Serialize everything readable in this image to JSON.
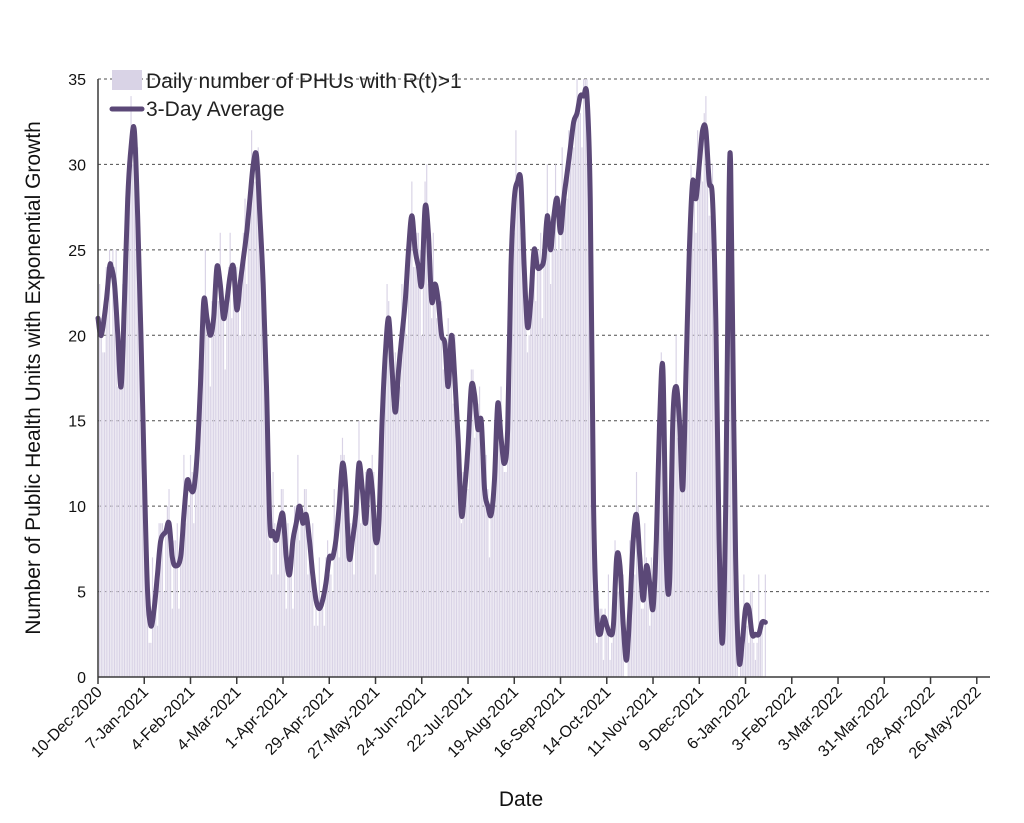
{
  "chart_data": {
    "type": "bar",
    "xlabel": "Date",
    "ylabel": "Number of Public Health Units with Exponential Growth",
    "ylim": [
      0,
      35
    ],
    "yticks": [
      0,
      5,
      10,
      15,
      20,
      25,
      30,
      35
    ],
    "xlim_days": [
      0,
      540
    ],
    "x_start": "10-Dec-2020",
    "x_tick_labels": [
      "10-Dec-2020",
      "7-Jan-2021",
      "4-Feb-2021",
      "4-Mar-2021",
      "1-Apr-2021",
      "29-Apr-2021",
      "27-May-2021",
      "24-Jun-2021",
      "22-Jul-2021",
      "19-Aug-2021",
      "16-Sep-2021",
      "14-Oct-2021",
      "11-Nov-2021",
      "9-Dec-2021",
      "6-Jan-2022",
      "3-Feb-2022",
      "3-Mar-2022",
      "31-Mar-2022",
      "28-Apr-2022",
      "26-May-2022"
    ],
    "grid": true,
    "legend": {
      "placement": "top-left"
    },
    "colors": {
      "bars": "#d9d3e6",
      "line": "#5b4877"
    },
    "series": [
      {
        "name": "Daily number of PHUs with R(t)>1",
        "type": "bar"
      },
      {
        "name": "3-Day Average",
        "type": "line"
      }
    ],
    "average_keypoints": [
      [
        0,
        21
      ],
      [
        2,
        20
      ],
      [
        5,
        22
      ],
      [
        7,
        24
      ],
      [
        8,
        24
      ],
      [
        10,
        23
      ],
      [
        12,
        20
      ],
      [
        14,
        17
      ],
      [
        16,
        22
      ],
      [
        18,
        28
      ],
      [
        20,
        31
      ],
      [
        22,
        32
      ],
      [
        24,
        27
      ],
      [
        26,
        20
      ],
      [
        28,
        12
      ],
      [
        30,
        5
      ],
      [
        32,
        3
      ],
      [
        34,
        4
      ],
      [
        36,
        6
      ],
      [
        38,
        8
      ],
      [
        41,
        8.5
      ],
      [
        43,
        9
      ],
      [
        45,
        7
      ],
      [
        47,
        6.5
      ],
      [
        50,
        7
      ],
      [
        52,
        9.5
      ],
      [
        54,
        11.5
      ],
      [
        56,
        11
      ],
      [
        58,
        11
      ],
      [
        60,
        13
      ],
      [
        62,
        17
      ],
      [
        64,
        22
      ],
      [
        66,
        21
      ],
      [
        68,
        20
      ],
      [
        70,
        21
      ],
      [
        72,
        24
      ],
      [
        74,
        23
      ],
      [
        76,
        21
      ],
      [
        78,
        22
      ],
      [
        80,
        23.5
      ],
      [
        82,
        24
      ],
      [
        84,
        21.5
      ],
      [
        86,
        23
      ],
      [
        88,
        24.5
      ],
      [
        90,
        26
      ],
      [
        92,
        28
      ],
      [
        94,
        30
      ],
      [
        96,
        30.5
      ],
      [
        98,
        27
      ],
      [
        100,
        23
      ],
      [
        102,
        17
      ],
      [
        104,
        9
      ],
      [
        106,
        8.5
      ],
      [
        108,
        8
      ],
      [
        110,
        9
      ],
      [
        112,
        9.5
      ],
      [
        114,
        7
      ],
      [
        116,
        6
      ],
      [
        118,
        8
      ],
      [
        120,
        9
      ],
      [
        122,
        10
      ],
      [
        124,
        9
      ],
      [
        126,
        9.5
      ],
      [
        128,
        8
      ],
      [
        130,
        6
      ],
      [
        132,
        4.5
      ],
      [
        134,
        4
      ],
      [
        136,
        4.5
      ],
      [
        138,
        5.5
      ],
      [
        140,
        7
      ],
      [
        142,
        7
      ],
      [
        144,
        8
      ],
      [
        146,
        10
      ],
      [
        148,
        12.5
      ],
      [
        150,
        11
      ],
      [
        152,
        7
      ],
      [
        154,
        8
      ],
      [
        156,
        9.5
      ],
      [
        158,
        12.5
      ],
      [
        160,
        11
      ],
      [
        162,
        9
      ],
      [
        164,
        12
      ],
      [
        166,
        11
      ],
      [
        168,
        8
      ],
      [
        170,
        9
      ],
      [
        172,
        15
      ],
      [
        174,
        19
      ],
      [
        176,
        21
      ],
      [
        178,
        18
      ],
      [
        180,
        15.5
      ],
      [
        182,
        18
      ],
      [
        184,
        20
      ],
      [
        186,
        22
      ],
      [
        188,
        25
      ],
      [
        190,
        27
      ],
      [
        192,
        25
      ],
      [
        194,
        24
      ],
      [
        196,
        23
      ],
      [
        198,
        27.5
      ],
      [
        200,
        26
      ],
      [
        202,
        22
      ],
      [
        204,
        23
      ],
      [
        206,
        22
      ],
      [
        208,
        20
      ],
      [
        210,
        19.5
      ],
      [
        212,
        17
      ],
      [
        214,
        20
      ],
      [
        216,
        17.5
      ],
      [
        218,
        14
      ],
      [
        220,
        9.5
      ],
      [
        222,
        11
      ],
      [
        224,
        13.5
      ],
      [
        226,
        17
      ],
      [
        228,
        16.5
      ],
      [
        230,
        14.5
      ],
      [
        232,
        15
      ],
      [
        234,
        11
      ],
      [
        236,
        10
      ],
      [
        238,
        9.5
      ],
      [
        240,
        11.5
      ],
      [
        242,
        16
      ],
      [
        244,
        14
      ],
      [
        246,
        12.5
      ],
      [
        248,
        14.5
      ],
      [
        250,
        24
      ],
      [
        252,
        28
      ],
      [
        254,
        29
      ],
      [
        256,
        29
      ],
      [
        258,
        24
      ],
      [
        260,
        20.5
      ],
      [
        262,
        22
      ],
      [
        264,
        25
      ],
      [
        266,
        24
      ],
      [
        268,
        24
      ],
      [
        270,
        24.5
      ],
      [
        272,
        27
      ],
      [
        274,
        25
      ],
      [
        276,
        27
      ],
      [
        278,
        28
      ],
      [
        280,
        26
      ],
      [
        282,
        28
      ],
      [
        284,
        29.5
      ],
      [
        286,
        31
      ],
      [
        288,
        32.5
      ],
      [
        290,
        33
      ],
      [
        292,
        34
      ],
      [
        294,
        34
      ],
      [
        296,
        34
      ],
      [
        298,
        28
      ],
      [
        300,
        10
      ],
      [
        302,
        3.5
      ],
      [
        304,
        2.5
      ],
      [
        306,
        3.5
      ],
      [
        308,
        3
      ],
      [
        310,
        2.5
      ],
      [
        312,
        3
      ],
      [
        314,
        7
      ],
      [
        316,
        6.5
      ],
      [
        318,
        3
      ],
      [
        320,
        1
      ],
      [
        322,
        4
      ],
      [
        324,
        8
      ],
      [
        326,
        9.5
      ],
      [
        328,
        7
      ],
      [
        330,
        4.5
      ],
      [
        332,
        6.5
      ],
      [
        334,
        5.5
      ],
      [
        336,
        4
      ],
      [
        338,
        8
      ],
      [
        340,
        15
      ],
      [
        342,
        18
      ],
      [
        344,
        7
      ],
      [
        346,
        5.5
      ],
      [
        348,
        15
      ],
      [
        350,
        17
      ],
      [
        352,
        15
      ],
      [
        354,
        11
      ],
      [
        356,
        18
      ],
      [
        358,
        25
      ],
      [
        360,
        29
      ],
      [
        362,
        28
      ],
      [
        364,
        30
      ],
      [
        366,
        32
      ],
      [
        368,
        32
      ],
      [
        370,
        29
      ],
      [
        372,
        28
      ],
      [
        374,
        21
      ],
      [
        376,
        8
      ],
      [
        378,
        2
      ],
      [
        380,
        10
      ],
      [
        382,
        28
      ],
      [
        383,
        30
      ],
      [
        384,
        22
      ],
      [
        386,
        7
      ],
      [
        388,
        1
      ],
      [
        390,
        2
      ],
      [
        392,
        4
      ],
      [
        394,
        4
      ],
      [
        396,
        2.5
      ],
      [
        398,
        2.5
      ],
      [
        400,
        2.5
      ],
      [
        402,
        3.2
      ],
      [
        404,
        3.2
      ]
    ],
    "daily_bar_span_days": [
      0,
      404
    ]
  }
}
